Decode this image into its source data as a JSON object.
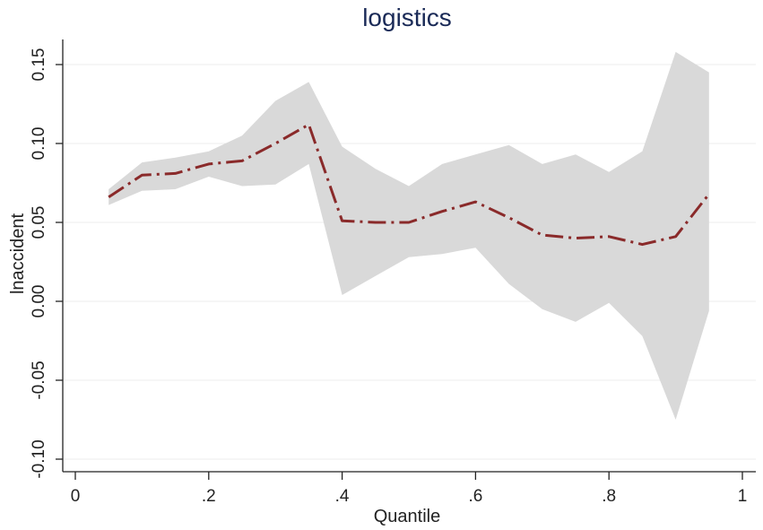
{
  "chart_data": {
    "type": "line",
    "title": "logistics",
    "xlabel": "Quantile",
    "ylabel": "lnaccident",
    "xlim": [
      0,
      1
    ],
    "ylim": [
      -0.1,
      0.16
    ],
    "xticks": [
      0,
      0.2,
      0.4,
      0.6,
      0.8,
      1
    ],
    "xtick_labels": [
      "0",
      ".2",
      ".4",
      ".6",
      ".8",
      "1"
    ],
    "yticks": [
      -0.1,
      -0.05,
      0,
      0.05,
      0.1,
      0.15
    ],
    "ytick_labels": [
      "-0.10",
      "-0.05",
      "0.00",
      "0.05",
      "0.10",
      "0.15"
    ],
    "grid": true,
    "x": [
      0.05,
      0.1,
      0.15,
      0.2,
      0.25,
      0.3,
      0.35,
      0.4,
      0.45,
      0.5,
      0.55,
      0.6,
      0.65,
      0.7,
      0.75,
      0.8,
      0.85,
      0.9,
      0.95
    ],
    "series": [
      {
        "values": [
          0.066,
          0.08,
          0.081,
          0.087,
          0.089,
          0.1,
          0.112,
          0.051,
          0.05,
          0.05,
          0.057,
          0.063,
          0.053,
          0.042,
          0.04,
          0.041,
          0.036,
          0.041,
          0.068
        ],
        "lower": [
          0.061,
          0.07,
          0.071,
          0.079,
          0.073,
          0.074,
          0.087,
          0.004,
          0.016,
          0.028,
          0.03,
          0.034,
          0.011,
          -0.005,
          -0.013,
          -0.001,
          -0.022,
          -0.075,
          -0.006
        ],
        "upper": [
          0.071,
          0.088,
          0.091,
          0.095,
          0.105,
          0.127,
          0.139,
          0.098,
          0.084,
          0.073,
          0.087,
          0.093,
          0.099,
          0.087,
          0.093,
          0.082,
          0.095,
          0.158,
          0.145
        ]
      }
    ],
    "colors": {
      "line": "#8a2a2a",
      "band": "#d9d9d9",
      "title": "#1a2a57"
    }
  }
}
